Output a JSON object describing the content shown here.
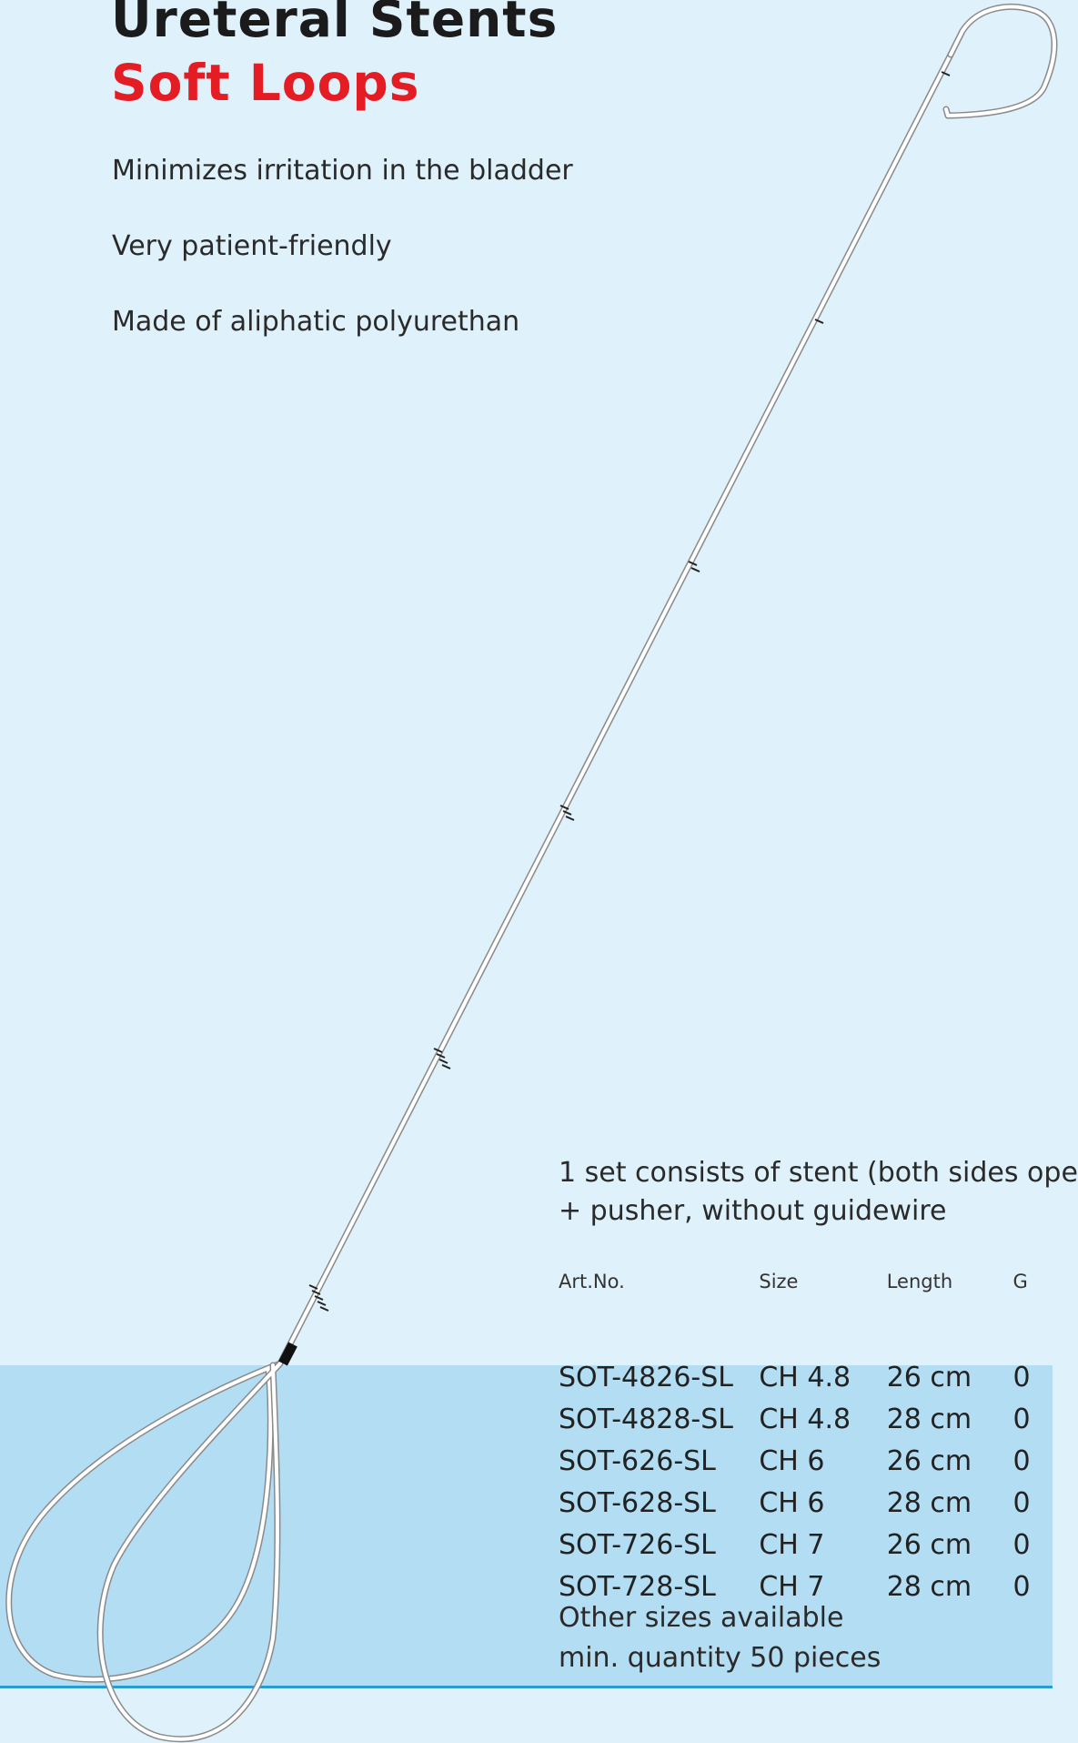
{
  "title": {
    "line1": "Ureteral Stents",
    "line2": "Soft Loops"
  },
  "features": [
    "Minimizes irritation in the bladder",
    "Very patient-friendly",
    "Made of aliphatic polyurethan"
  ],
  "set_info": {
    "line1": "1 set consists of stent (both sides ope",
    "line2": "+ pusher, without guidewire"
  },
  "table": {
    "headers": [
      "Art.No.",
      "Size",
      "Length",
      "G"
    ],
    "rows": [
      [
        "SOT-4826-SL",
        "CH 4.8",
        "26 cm",
        "0"
      ],
      [
        "SOT-4828-SL",
        "CH 4.8",
        "28 cm",
        "0"
      ],
      [
        "SOT-626-SL",
        "CH 6",
        "26 cm",
        "0"
      ],
      [
        "SOT-628-SL",
        "CH 6",
        "28 cm",
        "0"
      ],
      [
        "SOT-726-SL",
        "CH 7",
        "26 cm",
        "0"
      ],
      [
        "SOT-728-SL",
        "CH 7",
        "28 cm",
        "0"
      ]
    ]
  },
  "footnote": {
    "line1": "Other sizes available",
    "line2": "min. quantity 50 pieces"
  },
  "colors": {
    "background": "#dff1fb",
    "band": "#b2ddf3",
    "band_line": "#2a9ad2",
    "title_dark": "#1b1b1b",
    "title_accent": "#e41c23"
  }
}
